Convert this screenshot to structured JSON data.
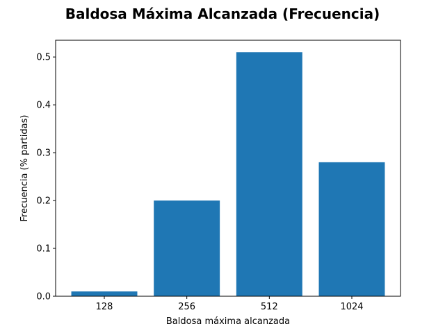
{
  "chart_data": {
    "type": "bar",
    "title": "Baldosa Máxima Alcanzada (Frecuencia)",
    "xlabel": "Baldosa máxima alcanzada",
    "ylabel": "Frecuencia (% partidas)",
    "categories": [
      "128",
      "256",
      "512",
      "1024"
    ],
    "values": [
      0.01,
      0.2,
      0.51,
      0.28
    ],
    "ylim": [
      0,
      0.535
    ],
    "yticks": [
      0.0,
      0.1,
      0.2,
      0.3,
      0.4,
      0.5
    ],
    "ytick_labels": [
      "0.0",
      "0.1",
      "0.2",
      "0.3",
      "0.4",
      "0.5"
    ],
    "grid": false,
    "bar_color": "#1f77b4"
  }
}
